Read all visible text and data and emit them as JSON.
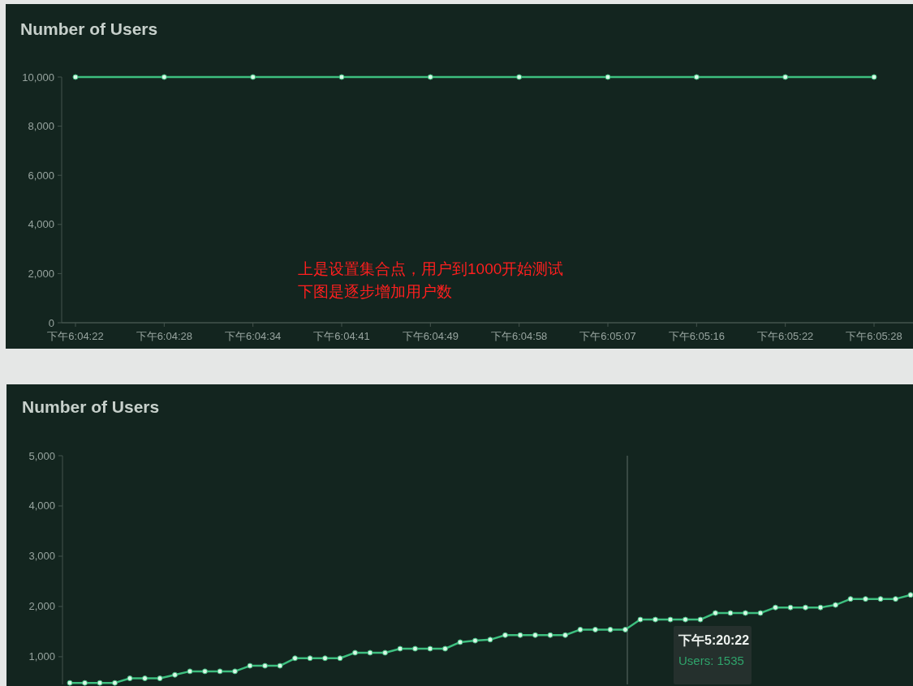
{
  "chart_data": [
    {
      "type": "line",
      "title": "Number of Users",
      "categories": [
        "下午6:04:22",
        "下午6:04:28",
        "下午6:04:34",
        "下午6:04:41",
        "下午6:04:49",
        "下午6:04:58",
        "下午6:05:07",
        "下午6:05:16",
        "下午6:05:22",
        "下午6:05:28"
      ],
      "series": [
        {
          "color": "#3dbf7f",
          "values": [
            10000,
            10000,
            10000,
            10000,
            10000,
            10000,
            10000,
            10000,
            10000,
            10000
          ]
        }
      ],
      "ylim": [
        0,
        10000
      ],
      "yticks": [
        0,
        {
          "value": 2000,
          "label": "2,000"
        },
        {
          "value": 4000,
          "label": "4,000"
        },
        {
          "value": 6000,
          "label": "6,000"
        },
        {
          "value": 8000,
          "label": "8,000"
        },
        {
          "value": 10000,
          "label": "10,000"
        }
      ],
      "marker": "circle",
      "annotations": [
        "上是设置集合点，用户到1000开始测试",
        "下图是逐步增加用户数"
      ]
    },
    {
      "type": "line",
      "title": "Number of Users",
      "categories": [
        null,
        null,
        null,
        null,
        null,
        null,
        null,
        null,
        null,
        null,
        null,
        null,
        null,
        null,
        null,
        null,
        null,
        null,
        null,
        null,
        null,
        null,
        null,
        null,
        null,
        null,
        null,
        null,
        null,
        null,
        null,
        null,
        null,
        null,
        null,
        null,
        null,
        null,
        null,
        null,
        null,
        null,
        null,
        null,
        null,
        null,
        null,
        null,
        null,
        null,
        null,
        null,
        null,
        null,
        null,
        null,
        null
      ],
      "series": [
        {
          "color": "#3dbf7f",
          "values": [
            480,
            480,
            480,
            480,
            570,
            570,
            570,
            640,
            710,
            710,
            710,
            710,
            820,
            820,
            820,
            970,
            970,
            970,
            970,
            1080,
            1080,
            1080,
            1160,
            1160,
            1160,
            1160,
            1290,
            1320,
            1340,
            1430,
            1430,
            1430,
            1430,
            1430,
            1540,
            1540,
            1540,
            1540,
            1740,
            1740,
            1740,
            1740,
            1740,
            1870,
            1870,
            1870,
            1870,
            1980,
            1980,
            1980,
            1980,
            2030,
            2150,
            2150,
            2150,
            2150,
            2230
          ]
        }
      ],
      "ylim": [
        450,
        5000
      ],
      "yticks": [
        {
          "value": 1000,
          "label": "1,000"
        },
        {
          "value": 2000,
          "label": "2,000"
        },
        {
          "value": 3000,
          "label": "3,000"
        },
        {
          "value": 4000,
          "label": "4,000"
        },
        {
          "value": 5000,
          "label": "5,000"
        }
      ],
      "marker": "circle",
      "annotations": [
        "下午5:20:22",
        "Users: 1535"
      ]
    }
  ]
}
